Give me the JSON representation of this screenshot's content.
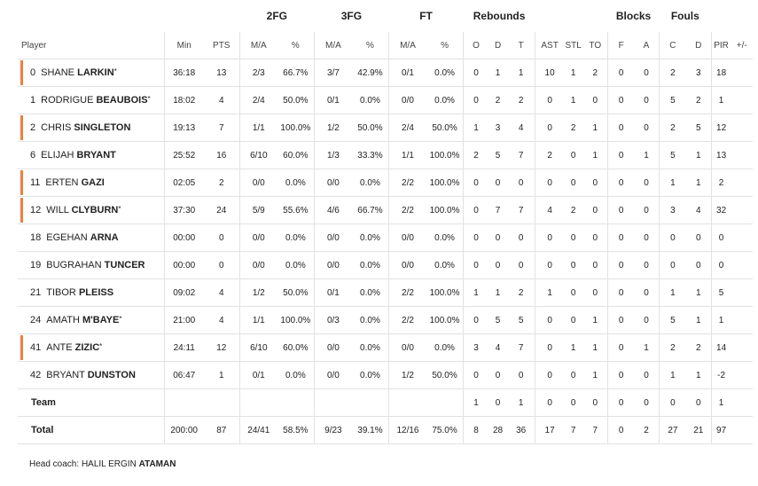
{
  "headers": {
    "player": "Player",
    "min": "Min",
    "pts": "PTS",
    "fg2": "2FG",
    "fg3": "3FG",
    "ft": "FT",
    "rebounds": "Rebounds",
    "blocks": "Blocks",
    "fouls": "Fouls",
    "ma": "M/A",
    "pct": "%",
    "o": "O",
    "d": "D",
    "t": "T",
    "ast": "AST",
    "stl": "STL",
    "to": "TO",
    "f": "F",
    "a": "A",
    "c": "C",
    "fd": "D",
    "pir": "PIR",
    "pm": "+/-"
  },
  "players": [
    {
      "num": "0",
      "first": "SHANE",
      "last": "LARKIN",
      "star": "*",
      "starter": true,
      "min": "36:18",
      "pts": "13",
      "fg2_ma": "2/3",
      "fg2_pct": "66.7%",
      "fg3_ma": "3/7",
      "fg3_pct": "42.9%",
      "ft_ma": "0/1",
      "ft_pct": "0.0%",
      "o": "0",
      "d": "1",
      "t": "1",
      "ast": "10",
      "stl": "1",
      "to": "2",
      "bf": "0",
      "ba": "0",
      "fc": "2",
      "fd": "3",
      "pir": "18",
      "pm": ""
    },
    {
      "num": "1",
      "first": "RODRIGUE",
      "last": "BEAUBOIS",
      "star": "*",
      "starter": false,
      "min": "18:02",
      "pts": "4",
      "fg2_ma": "2/4",
      "fg2_pct": "50.0%",
      "fg3_ma": "0/1",
      "fg3_pct": "0.0%",
      "ft_ma": "0/0",
      "ft_pct": "0.0%",
      "o": "0",
      "d": "2",
      "t": "2",
      "ast": "0",
      "stl": "1",
      "to": "0",
      "bf": "0",
      "ba": "0",
      "fc": "5",
      "fd": "2",
      "pir": "1",
      "pm": ""
    },
    {
      "num": "2",
      "first": "CHRIS",
      "last": "SINGLETON",
      "star": "",
      "starter": true,
      "min": "19:13",
      "pts": "7",
      "fg2_ma": "1/1",
      "fg2_pct": "100.0%",
      "fg3_ma": "1/2",
      "fg3_pct": "50.0%",
      "ft_ma": "2/4",
      "ft_pct": "50.0%",
      "o": "1",
      "d": "3",
      "t": "4",
      "ast": "0",
      "stl": "2",
      "to": "1",
      "bf": "0",
      "ba": "0",
      "fc": "2",
      "fd": "5",
      "pir": "12",
      "pm": ""
    },
    {
      "num": "6",
      "first": "ELIJAH",
      "last": "BRYANT",
      "star": "",
      "starter": false,
      "min": "25:52",
      "pts": "16",
      "fg2_ma": "6/10",
      "fg2_pct": "60.0%",
      "fg3_ma": "1/3",
      "fg3_pct": "33.3%",
      "ft_ma": "1/1",
      "ft_pct": "100.0%",
      "o": "2",
      "d": "5",
      "t": "7",
      "ast": "2",
      "stl": "0",
      "to": "1",
      "bf": "0",
      "ba": "1",
      "fc": "5",
      "fd": "1",
      "pir": "13",
      "pm": ""
    },
    {
      "num": "11",
      "first": "ERTEN",
      "last": "GAZI",
      "star": "",
      "starter": true,
      "min": "02:05",
      "pts": "2",
      "fg2_ma": "0/0",
      "fg2_pct": "0.0%",
      "fg3_ma": "0/0",
      "fg3_pct": "0.0%",
      "ft_ma": "2/2",
      "ft_pct": "100.0%",
      "o": "0",
      "d": "0",
      "t": "0",
      "ast": "0",
      "stl": "0",
      "to": "0",
      "bf": "0",
      "ba": "0",
      "fc": "1",
      "fd": "1",
      "pir": "2",
      "pm": ""
    },
    {
      "num": "12",
      "first": "WILL",
      "last": "CLYBURN",
      "star": "*",
      "starter": true,
      "min": "37:30",
      "pts": "24",
      "fg2_ma": "5/9",
      "fg2_pct": "55.6%",
      "fg3_ma": "4/6",
      "fg3_pct": "66.7%",
      "ft_ma": "2/2",
      "ft_pct": "100.0%",
      "o": "0",
      "d": "7",
      "t": "7",
      "ast": "4",
      "stl": "2",
      "to": "0",
      "bf": "0",
      "ba": "0",
      "fc": "3",
      "fd": "4",
      "pir": "32",
      "pm": ""
    },
    {
      "num": "18",
      "first": "EGEHAN",
      "last": "ARNA",
      "star": "",
      "starter": false,
      "min": "00:00",
      "pts": "0",
      "fg2_ma": "0/0",
      "fg2_pct": "0.0%",
      "fg3_ma": "0/0",
      "fg3_pct": "0.0%",
      "ft_ma": "0/0",
      "ft_pct": "0.0%",
      "o": "0",
      "d": "0",
      "t": "0",
      "ast": "0",
      "stl": "0",
      "to": "0",
      "bf": "0",
      "ba": "0",
      "fc": "0",
      "fd": "0",
      "pir": "0",
      "pm": ""
    },
    {
      "num": "19",
      "first": "BUGRAHAN",
      "last": "TUNCER",
      "star": "",
      "starter": false,
      "min": "00:00",
      "pts": "0",
      "fg2_ma": "0/0",
      "fg2_pct": "0.0%",
      "fg3_ma": "0/0",
      "fg3_pct": "0.0%",
      "ft_ma": "0/0",
      "ft_pct": "0.0%",
      "o": "0",
      "d": "0",
      "t": "0",
      "ast": "0",
      "stl": "0",
      "to": "0",
      "bf": "0",
      "ba": "0",
      "fc": "0",
      "fd": "0",
      "pir": "0",
      "pm": ""
    },
    {
      "num": "21",
      "first": "TIBOR",
      "last": "PLEISS",
      "star": "",
      "starter": false,
      "min": "09:02",
      "pts": "4",
      "fg2_ma": "1/2",
      "fg2_pct": "50.0%",
      "fg3_ma": "0/1",
      "fg3_pct": "0.0%",
      "ft_ma": "2/2",
      "ft_pct": "100.0%",
      "o": "1",
      "d": "1",
      "t": "2",
      "ast": "1",
      "stl": "0",
      "to": "0",
      "bf": "0",
      "ba": "0",
      "fc": "1",
      "fd": "1",
      "pir": "5",
      "pm": ""
    },
    {
      "num": "24",
      "first": "AMATH",
      "last": "M'BAYE",
      "star": "*",
      "starter": false,
      "min": "21:00",
      "pts": "4",
      "fg2_ma": "1/1",
      "fg2_pct": "100.0%",
      "fg3_ma": "0/3",
      "fg3_pct": "0.0%",
      "ft_ma": "2/2",
      "ft_pct": "100.0%",
      "o": "0",
      "d": "5",
      "t": "5",
      "ast": "0",
      "stl": "0",
      "to": "1",
      "bf": "0",
      "ba": "0",
      "fc": "5",
      "fd": "1",
      "pir": "1",
      "pm": ""
    },
    {
      "num": "41",
      "first": "ANTE",
      "last": "ZIZIC",
      "star": "*",
      "starter": true,
      "min": "24:11",
      "pts": "12",
      "fg2_ma": "6/10",
      "fg2_pct": "60.0%",
      "fg3_ma": "0/0",
      "fg3_pct": "0.0%",
      "ft_ma": "0/0",
      "ft_pct": "0.0%",
      "o": "3",
      "d": "4",
      "t": "7",
      "ast": "0",
      "stl": "1",
      "to": "1",
      "bf": "0",
      "ba": "1",
      "fc": "2",
      "fd": "2",
      "pir": "14",
      "pm": ""
    },
    {
      "num": "42",
      "first": "BRYANT",
      "last": "DUNSTON",
      "star": "",
      "starter": false,
      "min": "06:47",
      "pts": "1",
      "fg2_ma": "0/1",
      "fg2_pct": "0.0%",
      "fg3_ma": "0/0",
      "fg3_pct": "0.0%",
      "ft_ma": "1/2",
      "ft_pct": "50.0%",
      "o": "0",
      "d": "0",
      "t": "0",
      "ast": "0",
      "stl": "0",
      "to": "1",
      "bf": "0",
      "ba": "0",
      "fc": "1",
      "fd": "1",
      "pir": "-2",
      "pm": ""
    }
  ],
  "team_row": {
    "label": "Team",
    "o": "1",
    "d": "0",
    "t": "1",
    "ast": "0",
    "stl": "0",
    "to": "0",
    "bf": "0",
    "ba": "0",
    "fc": "0",
    "fd": "0",
    "pir": "1"
  },
  "total_row": {
    "label": "Total",
    "min": "200:00",
    "pts": "87",
    "fg2_ma": "24/41",
    "fg2_pct": "58.5%",
    "fg3_ma": "9/23",
    "fg3_pct": "39.1%",
    "ft_ma": "12/16",
    "ft_pct": "75.0%",
    "o": "8",
    "d": "28",
    "t": "36",
    "ast": "17",
    "stl": "7",
    "to": "7",
    "bf": "0",
    "ba": "2",
    "fc": "27",
    "fd": "21",
    "pir": "97"
  },
  "coach": {
    "label": "Head coach:",
    "first": "HALIL ERGIN",
    "last": "ATAMAN"
  },
  "colors": {
    "starter_marker": "#f07f3c",
    "divider": "#e2e2e2"
  }
}
